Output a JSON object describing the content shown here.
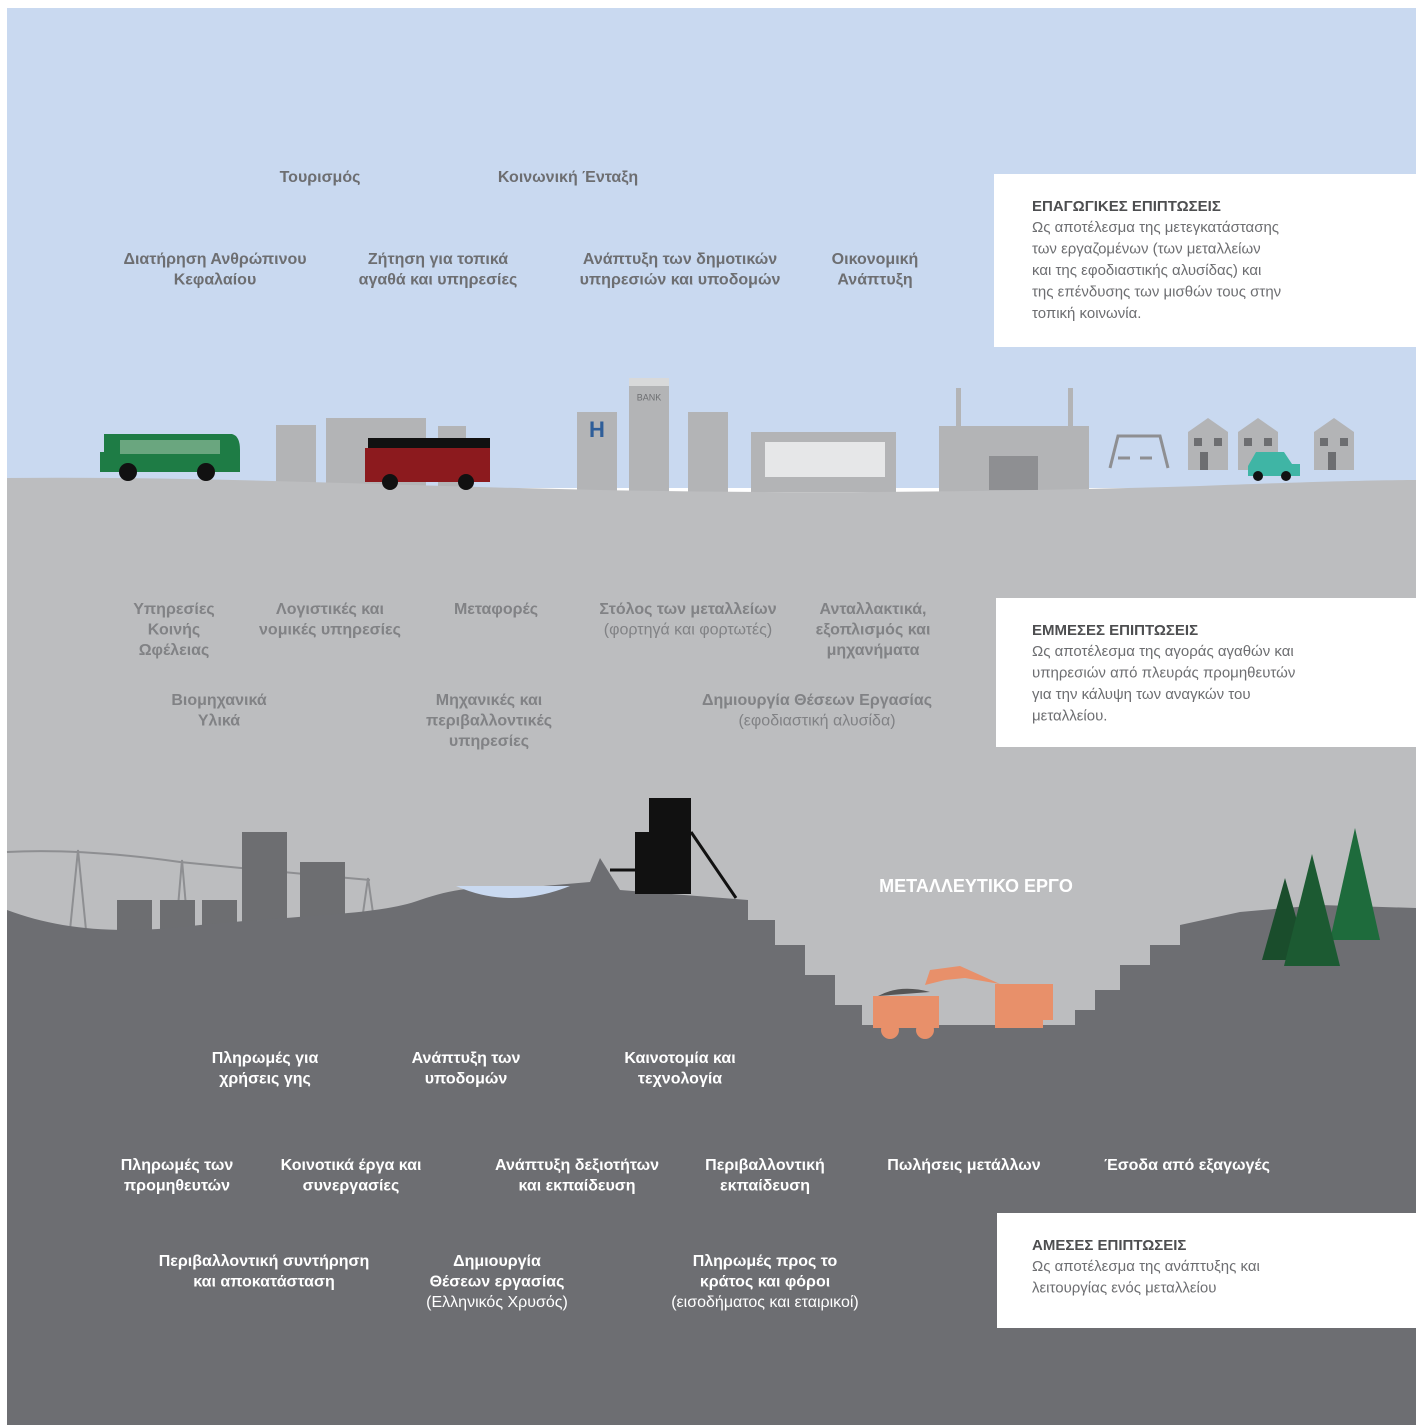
{
  "induced": {
    "title": "ΕΠΑΓΩΓΙΚΕΣ ΕΠΙΠΤΩΣΕΙΣ",
    "description": [
      "Ως αποτέλεσμα της μετεγκατάστασης",
      "των εργαζομένων (των μεταλλείων",
      "και της εφοδιαστικής αλυσίδας) και",
      "της επένδυσης των μισθών τους στην",
      "τοπική κοινωνία."
    ],
    "items": [
      {
        "label": [
          "Τουρισμός"
        ]
      },
      {
        "label": [
          "Κοινωνική Ένταξη"
        ]
      },
      {
        "label": [
          "Διατήρηση Ανθρώπινου",
          "Κεφαλαίου"
        ]
      },
      {
        "label": [
          "Ζήτηση για τοπικά",
          "αγαθά και υπηρεσίες"
        ]
      },
      {
        "label": [
          "Ανάπτυξη των δημοτικών",
          "υπηρεσιών και υποδομών"
        ]
      },
      {
        "label": [
          "Οικονομική",
          "Ανάπτυξη"
        ]
      }
    ]
  },
  "indirect": {
    "title": "ΕΜΜΕΣΕΣ ΕΠΙΠΤΩΣΕΙΣ",
    "description": [
      "Ως αποτέλεσμα της αγοράς αγαθών και",
      "υπηρεσιών από πλευράς προμηθευτών",
      "για την κάλυψη των αναγκών του",
      "μεταλλείου."
    ],
    "items": [
      {
        "label": [
          "Υπηρεσίες",
          "Κοινής",
          "Ωφέλειας"
        ]
      },
      {
        "label": [
          "Λογιστικές και",
          "νομικές υπηρεσίες"
        ]
      },
      {
        "label": [
          "Μεταφορές"
        ]
      },
      {
        "label": [
          "Στόλος των μεταλλείων"
        ],
        "note": "(φορτηγά και φορτωτές)"
      },
      {
        "label": [
          "Ανταλλακτικά,",
          "εξοπλισμός και",
          "μηχανήματα"
        ]
      },
      {
        "label": [
          "Βιομηχανικά",
          "Υλικά"
        ]
      },
      {
        "label": [
          "Μηχανικές και",
          "περιβαλλοντικές",
          "υπηρεσίες"
        ]
      },
      {
        "label": [
          "Δημιουργία Θέσεων Εργασίας"
        ],
        "note": "(εφοδιαστική αλυσίδα)"
      }
    ]
  },
  "direct": {
    "title": "ΑΜΕΣΕΣ ΕΠΙΠΤΩΣΕΙΣ",
    "description": [
      "Ως αποτέλεσμα της ανάπτυξης και",
      "λειτουργίας ενός μεταλλείου"
    ],
    "items": [
      {
        "label": [
          "Πληρωμές για",
          "χρήσεις γης"
        ]
      },
      {
        "label": [
          "Ανάπτυξη των",
          "υποδομών"
        ]
      },
      {
        "label": [
          "Καινοτομία και",
          "τεχνολογία"
        ]
      },
      {
        "label": [
          "Πληρωμές των",
          "προμηθευτών"
        ]
      },
      {
        "label": [
          "Κοινοτικά έργα και",
          "συνεργασίες"
        ]
      },
      {
        "label": [
          "Ανάπτυξη δεξιοτήτων",
          "και εκπαίδευση"
        ]
      },
      {
        "label": [
          "Περιβαλλοντική",
          "εκπαίδευση"
        ]
      },
      {
        "label": [
          "Πωλήσεις μετάλλων"
        ]
      },
      {
        "label": [
          "Έσοδα από εξαγωγές"
        ]
      },
      {
        "label": [
          "Περιβαλλοντική συντήρηση",
          "και αποκατάσταση"
        ]
      },
      {
        "label": [
          "Δημιουργία",
          "Θέσεων εργασίας"
        ],
        "note": "(Ελληνικός Χρυσός)"
      },
      {
        "label": [
          "Πληρωμές προς το",
          "κράτος και φόροι"
        ],
        "note": "(εισοδήματος και εταιρικοί)"
      }
    ]
  },
  "mine_label": "ΜΕΤΑΛΛΕΥΤΙΚΟ ΕΡΓΟ",
  "bank_sign": "BANK",
  "hospital_sign": "H"
}
